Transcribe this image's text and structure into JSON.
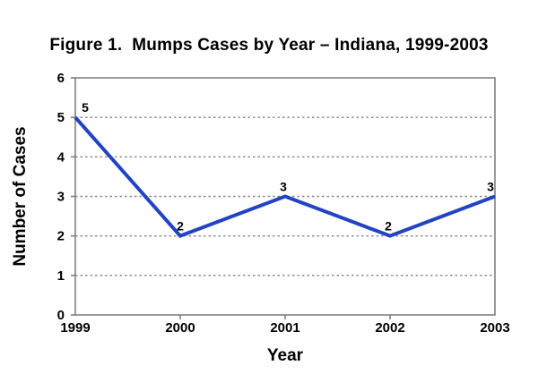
{
  "title": "Figure 1.  Mumps Cases by Year – Indiana, 1999-2003",
  "chart_data": {
    "type": "line",
    "x": [
      "1999",
      "2000",
      "2001",
      "2002",
      "2003"
    ],
    "values": [
      5,
      2,
      3,
      2,
      3
    ],
    "data_labels": [
      "5",
      "2",
      "3",
      "2",
      "3"
    ],
    "title": "Figure 1.  Mumps Cases by Year – Indiana, 1999-2003",
    "xlabel": "Year",
    "ylabel": "Number of Cases",
    "ylim": [
      0,
      6
    ],
    "yticks": [
      0,
      1,
      2,
      3,
      4,
      5,
      6
    ],
    "grid_values": [
      1,
      2,
      3,
      4,
      5
    ],
    "grid_style": "dotted-horizontal",
    "legend": "none",
    "line_color": "#2143C4",
    "grid_color": "#858585",
    "axis_color": "#808080",
    "text_color": "#000000",
    "background_color": "#ffffff",
    "label_dx": [
      11,
      0,
      -2,
      -2,
      -5
    ]
  }
}
